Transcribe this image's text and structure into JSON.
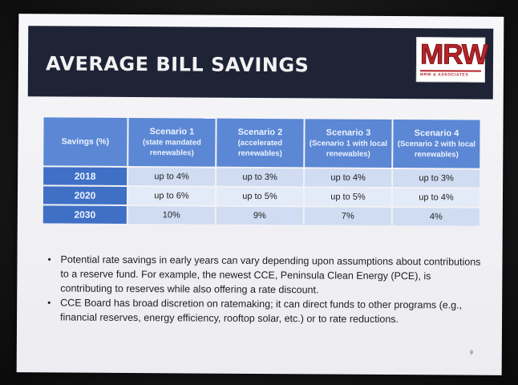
{
  "slide": {
    "title": "AVERAGE BILL SAVINGS",
    "logo": {
      "mark": "MRW",
      "subtitle": "MRW & ASSOCIATES"
    },
    "page_number": "9"
  },
  "table": {
    "header": {
      "first": "Savings (%)",
      "scenarios": [
        {
          "name": "Scenario 1",
          "desc": "(state mandated renewables)"
        },
        {
          "name": "Scenario 2",
          "desc": "(accelerated renewables)"
        },
        {
          "name": "Scenario 3",
          "desc": "(Scenario 1 with local renewables)"
        },
        {
          "name": "Scenario 4",
          "desc": "(Scenario 2 with local renewables)"
        }
      ]
    },
    "rows": [
      {
        "year": "2018",
        "values": [
          "up to 4%",
          "up to 3%",
          "up to 4%",
          "up to 3%"
        ]
      },
      {
        "year": "2020",
        "values": [
          "up to 6%",
          "up to 5%",
          "up to 5%",
          "up to 4%"
        ]
      },
      {
        "year": "2030",
        "values": [
          "10%",
          "9%",
          "7%",
          "4%"
        ]
      }
    ]
  },
  "bullets": [
    "Potential rate savings in early years can vary depending upon assumptions about contributions to a reserve fund. For example, the newest CCE, Peninsula Clean Energy (PCE), is contributing to reserves while also offering a rate discount.",
    "CCE Board has broad discretion on ratemaking; it can direct funds to other programs (e.g., financial reserves, energy efficiency, rooftop solar, etc.) or to rate reductions."
  ],
  "colors": {
    "header_bg": "#1f2336",
    "table_header": "#5b87d4",
    "year_cell": "#3f70c6",
    "cell_dark": "#cfdcf2",
    "cell_light": "#e4ebf8",
    "logo_red": "#b5242a"
  }
}
